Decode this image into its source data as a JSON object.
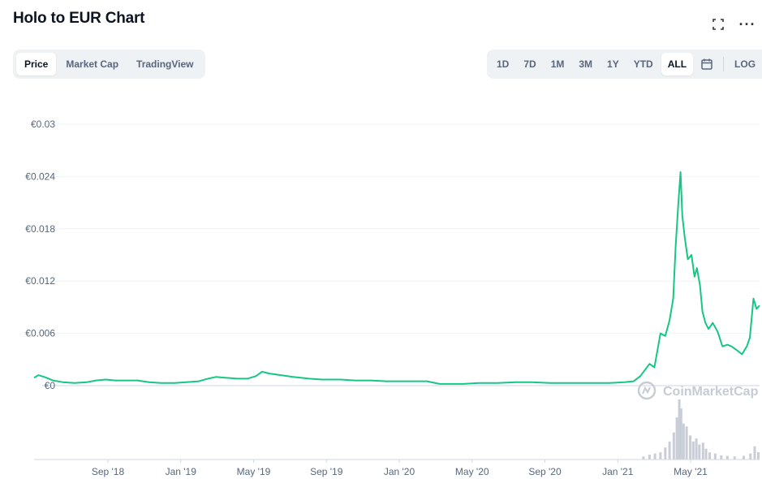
{
  "header": {
    "title": "Holo to EUR Chart"
  },
  "actions": {
    "expand_icon": "fullscreen-icon",
    "more_icon": "more-dots-icon",
    "more_glyph": "···"
  },
  "view_tabs": [
    {
      "label": "Price",
      "active": true
    },
    {
      "label": "Market Cap",
      "active": false
    },
    {
      "label": "TradingView",
      "active": false
    }
  ],
  "range_tabs": [
    {
      "label": "1D",
      "active": false
    },
    {
      "label": "7D",
      "active": false
    },
    {
      "label": "1M",
      "active": false
    },
    {
      "label": "3M",
      "active": false
    },
    {
      "label": "1Y",
      "active": false
    },
    {
      "label": "YTD",
      "active": false
    },
    {
      "label": "ALL",
      "active": true
    }
  ],
  "range_extra": {
    "calendar_icon": "calendar-icon",
    "log_label": "LOG"
  },
  "watermark": "CoinMarketCap",
  "colors": {
    "line": "#16c784",
    "volume": "#c8cdd8",
    "grid": "#eff2f5",
    "baseline": "#cfd6e4"
  },
  "chart_data": {
    "type": "line",
    "title": "Holo to EUR Chart",
    "xlabel": "",
    "ylabel": "",
    "ylim": [
      0,
      0.03
    ],
    "y_ticks": [
      {
        "value": 0.03,
        "label": "€0.03"
      },
      {
        "value": 0.024,
        "label": "€0.024"
      },
      {
        "value": 0.018,
        "label": "€0.018"
      },
      {
        "value": 0.012,
        "label": "€0.012"
      },
      {
        "value": 0.006,
        "label": "€0.006"
      },
      {
        "value": 0,
        "label": "€0"
      }
    ],
    "x_ticks": [
      "Sep '18",
      "Jan '19",
      "May '19",
      "Sep '19",
      "Jan '20",
      "May '20",
      "Sep '20",
      "Jan '21",
      "May '21"
    ],
    "x_range": [
      "2018-05-15",
      "2021-08-20"
    ],
    "grid": true,
    "series": [
      {
        "values": [
          [
            "2018-05-15",
            0.0009
          ],
          [
            "2018-05-22",
            0.0012
          ],
          [
            "2018-06-01",
            0.001
          ],
          [
            "2018-06-15",
            0.0006
          ],
          [
            "2018-07-01",
            0.0004
          ],
          [
            "2018-07-20",
            0.0003
          ],
          [
            "2018-08-10",
            0.0004
          ],
          [
            "2018-08-25",
            0.0006
          ],
          [
            "2018-09-10",
            0.0007
          ],
          [
            "2018-09-25",
            0.0006
          ],
          [
            "2018-10-15",
            0.0006
          ],
          [
            "2018-11-01",
            0.0006
          ],
          [
            "2018-11-20",
            0.0004
          ],
          [
            "2018-12-10",
            0.0003
          ],
          [
            "2019-01-01",
            0.0003
          ],
          [
            "2019-01-20",
            0.0004
          ],
          [
            "2019-02-10",
            0.0005
          ],
          [
            "2019-02-25",
            0.0008
          ],
          [
            "2019-03-10",
            0.001
          ],
          [
            "2019-03-25",
            0.0009
          ],
          [
            "2019-04-15",
            0.0008
          ],
          [
            "2019-05-01",
            0.0008
          ],
          [
            "2019-05-15",
            0.0011
          ],
          [
            "2019-05-25",
            0.0016
          ],
          [
            "2019-06-05",
            0.0014
          ],
          [
            "2019-06-25",
            0.0012
          ],
          [
            "2019-07-15",
            0.001
          ],
          [
            "2019-08-10",
            0.0008
          ],
          [
            "2019-09-01",
            0.0007
          ],
          [
            "2019-10-01",
            0.0007
          ],
          [
            "2019-10-25",
            0.0006
          ],
          [
            "2019-11-20",
            0.0006
          ],
          [
            "2019-12-15",
            0.0005
          ],
          [
            "2020-01-10",
            0.0005
          ],
          [
            "2020-02-01",
            0.0005
          ],
          [
            "2020-02-20",
            0.0005
          ],
          [
            "2020-03-12",
            0.0002
          ],
          [
            "2020-03-25",
            0.0002
          ],
          [
            "2020-04-20",
            0.0002
          ],
          [
            "2020-05-15",
            0.0003
          ],
          [
            "2020-06-15",
            0.0003
          ],
          [
            "2020-07-15",
            0.0004
          ],
          [
            "2020-08-10",
            0.0004
          ],
          [
            "2020-09-10",
            0.0003
          ],
          [
            "2020-10-15",
            0.0003
          ],
          [
            "2020-11-15",
            0.0003
          ],
          [
            "2020-12-15",
            0.0003
          ],
          [
            "2021-01-10",
            0.0004
          ],
          [
            "2021-01-25",
            0.0005
          ],
          [
            "2021-02-05",
            0.0011
          ],
          [
            "2021-02-20",
            0.0025
          ],
          [
            "2021-02-28",
            0.0021
          ],
          [
            "2021-03-10",
            0.006
          ],
          [
            "2021-03-18",
            0.0057
          ],
          [
            "2021-03-25",
            0.0075
          ],
          [
            "2021-03-31",
            0.01
          ],
          [
            "2021-04-04",
            0.016
          ],
          [
            "2021-04-08",
            0.0205
          ],
          [
            "2021-04-12",
            0.0245
          ],
          [
            "2021-04-15",
            0.0195
          ],
          [
            "2021-04-19",
            0.017
          ],
          [
            "2021-04-24",
            0.0145
          ],
          [
            "2021-04-30",
            0.015
          ],
          [
            "2021-05-05",
            0.0125
          ],
          [
            "2021-05-09",
            0.0135
          ],
          [
            "2021-05-14",
            0.0115
          ],
          [
            "2021-05-18",
            0.0085
          ],
          [
            "2021-05-23",
            0.0072
          ],
          [
            "2021-05-28",
            0.0065
          ],
          [
            "2021-06-04",
            0.0072
          ],
          [
            "2021-06-12",
            0.0062
          ],
          [
            "2021-06-20",
            0.0045
          ],
          [
            "2021-06-28",
            0.0047
          ],
          [
            "2021-07-05",
            0.0045
          ],
          [
            "2021-07-15",
            0.004
          ],
          [
            "2021-07-22",
            0.0036
          ],
          [
            "2021-07-30",
            0.0045
          ],
          [
            "2021-08-04",
            0.0055
          ],
          [
            "2021-08-10",
            0.01
          ],
          [
            "2021-08-15",
            0.0088
          ],
          [
            "2021-08-20",
            0.0092
          ]
        ]
      }
    ],
    "volume": {
      "values": [
        [
          "2021-02-10",
          0.05
        ],
        [
          "2021-02-20",
          0.08
        ],
        [
          "2021-03-01",
          0.1
        ],
        [
          "2021-03-10",
          0.12
        ],
        [
          "2021-03-18",
          0.2
        ],
        [
          "2021-03-25",
          0.3
        ],
        [
          "2021-04-01",
          0.45
        ],
        [
          "2021-04-06",
          0.7
        ],
        [
          "2021-04-10",
          1.0
        ],
        [
          "2021-04-13",
          0.85
        ],
        [
          "2021-04-17",
          0.6
        ],
        [
          "2021-04-22",
          0.55
        ],
        [
          "2021-04-28",
          0.4
        ],
        [
          "2021-05-03",
          0.3
        ],
        [
          "2021-05-08",
          0.35
        ],
        [
          "2021-05-13",
          0.25
        ],
        [
          "2021-05-19",
          0.28
        ],
        [
          "2021-05-24",
          0.18
        ],
        [
          "2021-05-30",
          0.12
        ],
        [
          "2021-06-08",
          0.1
        ],
        [
          "2021-06-18",
          0.07
        ],
        [
          "2021-06-28",
          0.06
        ],
        [
          "2021-07-10",
          0.05
        ],
        [
          "2021-07-25",
          0.06
        ],
        [
          "2021-08-05",
          0.1
        ],
        [
          "2021-08-12",
          0.22
        ],
        [
          "2021-08-18",
          0.12
        ]
      ]
    }
  }
}
